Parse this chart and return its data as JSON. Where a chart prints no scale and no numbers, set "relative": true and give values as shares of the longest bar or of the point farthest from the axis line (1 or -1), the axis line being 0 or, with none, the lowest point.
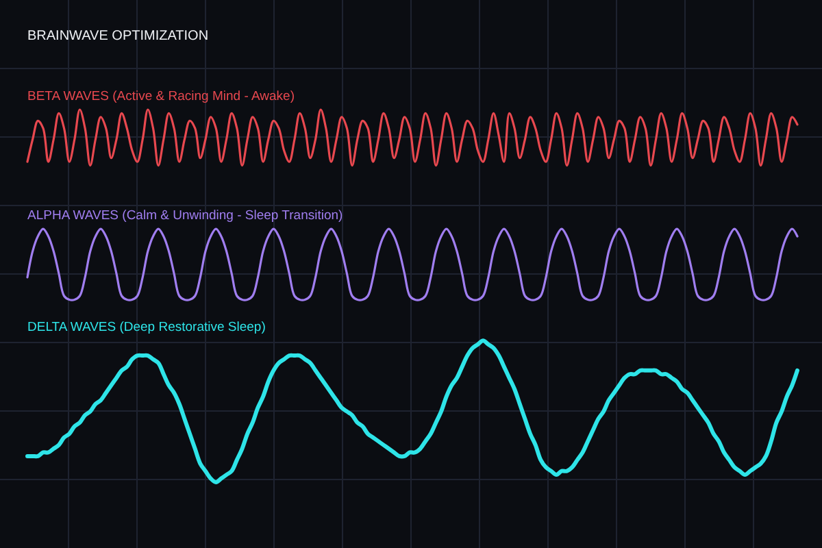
{
  "chart_data": {
    "type": "line",
    "title": "BRAINWAVE OPTIMIZATION",
    "relative": true,
    "grid": true,
    "categories": [
      null,
      null,
      null,
      null,
      null,
      null,
      null,
      null,
      null,
      null,
      null,
      null,
      null,
      null,
      null,
      null,
      null,
      null,
      null,
      null,
      null,
      null,
      null,
      null,
      null,
      null,
      null,
      null,
      null,
      null,
      null,
      null,
      null,
      null,
      null,
      null,
      null,
      null,
      null,
      null,
      null,
      null,
      null,
      null,
      null,
      null,
      null,
      null,
      null,
      null,
      null,
      null,
      null,
      null,
      null,
      null,
      null,
      null,
      null,
      null,
      null,
      null,
      null,
      null,
      null,
      null,
      null,
      null,
      null,
      null,
      null,
      null,
      null,
      null,
      null,
      null,
      null,
      null,
      null,
      null,
      null,
      null,
      null,
      null,
      null,
      null,
      null,
      null,
      null,
      null,
      null,
      null,
      null,
      null,
      null,
      null,
      null,
      null,
      null,
      null,
      null,
      null,
      null,
      null,
      null,
      null,
      null,
      null,
      null,
      null,
      null,
      null,
      null,
      null,
      null,
      null,
      null,
      null,
      null,
      null,
      null,
      null,
      null,
      null,
      null,
      null,
      null,
      null,
      null,
      null,
      null,
      null,
      null,
      null,
      null,
      null,
      null,
      null,
      null,
      null,
      null,
      null,
      null,
      null,
      null,
      null,
      null,
      null
    ],
    "series": [
      {
        "name": "BETA WAVES (Active & Racing Mind - Awake)",
        "color": "#e8484f",
        "values": [
          0.86,
          0.92,
          0.97,
          0.95,
          0.86,
          0.92,
          0.99,
          0.95,
          0.86,
          0.92,
          1.0,
          0.95,
          0.85,
          0.92,
          0.98,
          0.95,
          0.87,
          0.92,
          0.99,
          0.95,
          0.89,
          0.86,
          0.92,
          1.0,
          0.95,
          0.85,
          0.92,
          0.99,
          0.95,
          0.86,
          0.92,
          0.97,
          0.95,
          0.87,
          0.92,
          0.98,
          0.95,
          0.86,
          0.92,
          0.99,
          0.95,
          0.85,
          0.92,
          0.98,
          0.95,
          0.86,
          0.92,
          0.97,
          0.95,
          0.89,
          0.86,
          0.92,
          0.99,
          0.95,
          0.87,
          0.92,
          1.0,
          0.95,
          0.86,
          0.92,
          0.98,
          0.95,
          0.85,
          0.92,
          0.97,
          0.95,
          0.86,
          0.92,
          0.99,
          0.95,
          0.87,
          0.92,
          0.98,
          0.95,
          0.86,
          0.92,
          0.99,
          0.95,
          0.85,
          0.92,
          0.99,
          0.95,
          0.86,
          0.92,
          0.97,
          0.95,
          0.89,
          0.86,
          0.92,
          0.99,
          0.93,
          0.86,
          0.99,
          0.95,
          0.87,
          0.92,
          0.98,
          0.95,
          0.89,
          0.86,
          0.92,
          0.99,
          0.95,
          0.85,
          0.92,
          0.99,
          0.95,
          0.86,
          0.92,
          0.98,
          0.95,
          0.87,
          0.92,
          0.97,
          0.95,
          0.86,
          0.92,
          0.98,
          0.95,
          0.85,
          0.92,
          0.99,
          0.95,
          0.86,
          0.92,
          0.99,
          0.95,
          0.87,
          0.92,
          0.97,
          0.95,
          0.86,
          0.92,
          0.98,
          0.95,
          0.89,
          0.86,
          0.92,
          0.99,
          0.95,
          0.85,
          0.92,
          0.99,
          0.95,
          0.86,
          0.92,
          0.98,
          0.96
        ]
      },
      {
        "name": "ALPHA WAVES (Calm & Unwinding - Sleep Transition)",
        "color": "#a07ef0",
        "values": [
          0.55,
          0.62,
          0.66,
          0.68,
          0.66,
          0.62,
          0.56,
          0.5,
          0.49,
          0.49,
          0.5,
          0.55,
          0.62,
          0.66,
          0.68,
          0.66,
          0.62,
          0.56,
          0.5,
          0.49,
          0.49,
          0.5,
          0.55,
          0.62,
          0.66,
          0.68,
          0.66,
          0.62,
          0.56,
          0.5,
          0.49,
          0.49,
          0.5,
          0.55,
          0.62,
          0.66,
          0.68,
          0.66,
          0.62,
          0.56,
          0.5,
          0.49,
          0.49,
          0.5,
          0.55,
          0.62,
          0.66,
          0.68,
          0.66,
          0.62,
          0.56,
          0.5,
          0.49,
          0.49,
          0.5,
          0.55,
          0.62,
          0.66,
          0.68,
          0.66,
          0.62,
          0.56,
          0.5,
          0.49,
          0.49,
          0.5,
          0.55,
          0.62,
          0.66,
          0.68,
          0.66,
          0.62,
          0.56,
          0.5,
          0.49,
          0.49,
          0.5,
          0.55,
          0.62,
          0.66,
          0.68,
          0.66,
          0.62,
          0.56,
          0.5,
          0.49,
          0.49,
          0.5,
          0.55,
          0.62,
          0.66,
          0.68,
          0.66,
          0.62,
          0.56,
          0.5,
          0.49,
          0.49,
          0.5,
          0.55,
          0.62,
          0.66,
          0.68,
          0.66,
          0.62,
          0.56,
          0.5,
          0.49,
          0.49,
          0.5,
          0.55,
          0.62,
          0.66,
          0.68,
          0.66,
          0.62,
          0.56,
          0.5,
          0.49,
          0.49,
          0.5,
          0.55,
          0.62,
          0.66,
          0.68,
          0.66,
          0.62,
          0.56,
          0.5,
          0.49,
          0.49,
          0.5,
          0.55,
          0.62,
          0.66,
          0.68,
          0.66,
          0.62,
          0.56,
          0.5,
          0.49,
          0.49,
          0.5,
          0.55,
          0.62,
          0.66,
          0.68,
          0.66
        ]
      },
      {
        "name": "DELTA WAVES (Deep Restorative Sleep)",
        "color": "#2ee4e8",
        "values": [
          0.07,
          0.07,
          0.07,
          0.08,
          0.08,
          0.09,
          0.1,
          0.12,
          0.13,
          0.15,
          0.16,
          0.18,
          0.19,
          0.21,
          0.22,
          0.24,
          0.26,
          0.28,
          0.3,
          0.31,
          0.33,
          0.34,
          0.34,
          0.34,
          0.33,
          0.32,
          0.29,
          0.26,
          0.24,
          0.21,
          0.17,
          0.13,
          0.09,
          0.05,
          0.03,
          0.01,
          0.0,
          0.01,
          0.02,
          0.03,
          0.06,
          0.09,
          0.13,
          0.16,
          0.2,
          0.23,
          0.27,
          0.3,
          0.32,
          0.33,
          0.34,
          0.34,
          0.34,
          0.33,
          0.32,
          0.3,
          0.28,
          0.26,
          0.24,
          0.22,
          0.2,
          0.19,
          0.18,
          0.16,
          0.15,
          0.13,
          0.12,
          0.11,
          0.1,
          0.09,
          0.08,
          0.07,
          0.07,
          0.08,
          0.08,
          0.09,
          0.11,
          0.13,
          0.16,
          0.19,
          0.23,
          0.26,
          0.28,
          0.31,
          0.34,
          0.36,
          0.37,
          0.38,
          0.37,
          0.36,
          0.34,
          0.31,
          0.28,
          0.25,
          0.21,
          0.17,
          0.13,
          0.1,
          0.06,
          0.04,
          0.03,
          0.02,
          0.03,
          0.03,
          0.04,
          0.06,
          0.08,
          0.11,
          0.14,
          0.17,
          0.19,
          0.22,
          0.24,
          0.26,
          0.28,
          0.29,
          0.29,
          0.3,
          0.3,
          0.3,
          0.3,
          0.29,
          0.29,
          0.28,
          0.27,
          0.25,
          0.24,
          0.22,
          0.2,
          0.18,
          0.16,
          0.13,
          0.11,
          0.08,
          0.06,
          0.04,
          0.03,
          0.02,
          0.03,
          0.04,
          0.05,
          0.07,
          0.11,
          0.16,
          0.19,
          0.23,
          0.26,
          0.3
        ]
      }
    ]
  }
}
